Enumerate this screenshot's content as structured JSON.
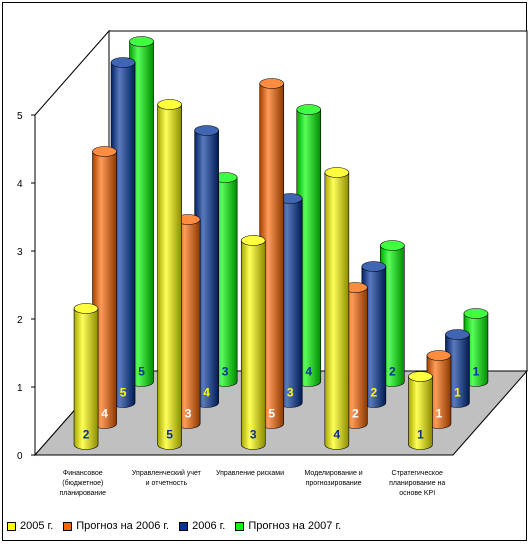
{
  "chart_data": {
    "type": "bar",
    "subtype": "3d-cylinder",
    "categories": [
      "Финансовое (бюджетное) планирование",
      "Управленческий учет и отчетность",
      "Управление рисками",
      "Моделирование и прогнозирование",
      "Стратегическое планирование на основе KPI"
    ],
    "category_lines": [
      [
        "Финансовое",
        "(бюджетное)",
        "планирование"
      ],
      [
        "Управленческий учет",
        "и отчетность"
      ],
      [
        "Управление рисками"
      ],
      [
        "Моделирование и",
        "прогнозирование"
      ],
      [
        "Стратегическое",
        "планирование на",
        "основе KPI"
      ]
    ],
    "series": [
      {
        "name": "2005 г.",
        "color": "#ffff00",
        "values": [
          2,
          5,
          3,
          4,
          1
        ]
      },
      {
        "name": "Прогноз на 2006 г.",
        "color": "#ff6600",
        "values": [
          4,
          3,
          5,
          2,
          1
        ]
      },
      {
        "name": "2006 г.",
        "color": "#003399",
        "values": [
          5,
          4,
          3,
          2,
          1
        ]
      },
      {
        "name": "Прогноз на 2007 г.",
        "color": "#00ff00",
        "values": [
          5,
          3,
          4,
          2,
          1
        ]
      }
    ],
    "label_colors": [
      "#003399",
      "#ffffff",
      "#ffff00",
      "#003399"
    ],
    "yticks": [
      0,
      1,
      2,
      3,
      4,
      5
    ],
    "ylim": [
      0,
      5
    ],
    "legend_position": "bottom",
    "grid": false,
    "floor_color": "#c0c0c0"
  }
}
